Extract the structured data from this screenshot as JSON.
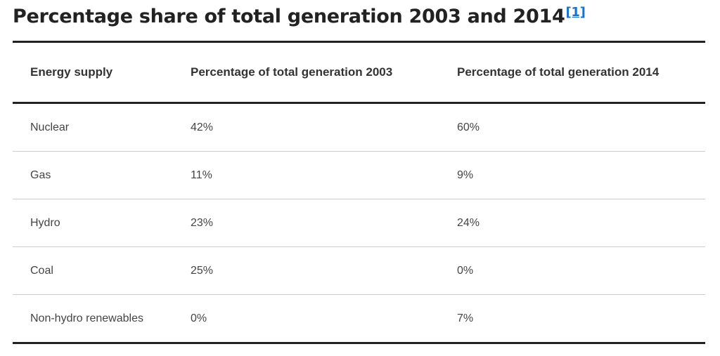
{
  "heading": {
    "title": "Percentage share of total generation 2003 and 2014",
    "footnote": "[1]"
  },
  "table": {
    "columns": [
      "Energy supply",
      "Percentage of total generation 2003",
      "Percentage of total generation 2014"
    ],
    "rows": [
      [
        "Nuclear",
        "42%",
        "60%"
      ],
      [
        "Gas",
        "11%",
        "9%"
      ],
      [
        "Hydro",
        "23%",
        "24%"
      ],
      [
        "Coal",
        "25%",
        "0%"
      ],
      [
        "Non-hydro renewables",
        "0%",
        "7%"
      ]
    ]
  },
  "colors": {
    "rule": "#222222",
    "row_divider": "#cccccc",
    "link": "#1a73c9"
  }
}
